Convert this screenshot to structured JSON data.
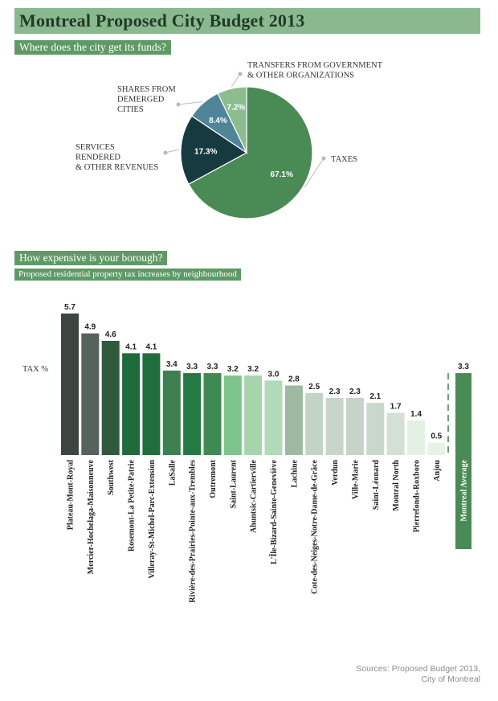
{
  "title": "Montreal Proposed City Budget 2013",
  "pie_heading": "Where does the city get its funds?",
  "bar_heading": "How expensive is your borough?",
  "bar_subheading": "Proposed residential property tax increases by neighbourhood",
  "sources": [
    "Sources: Proposed Budget 2013,",
    "City of Montreal"
  ],
  "chart_data": [
    {
      "type": "pie",
      "title": "Where does the city get its funds?",
      "slices": [
        {
          "label": [
            "TAXES"
          ],
          "value": 67.1,
          "value_label": "67.1%",
          "color": "#4a8a55"
        },
        {
          "label": [
            "SERVICES",
            "RENDERED",
            "& OTHER REVENUES"
          ],
          "value": 17.3,
          "value_label": "17.3%",
          "color": "#173a40"
        },
        {
          "label": [
            "SHARES FROM",
            "DEMERGED",
            "CITIES"
          ],
          "value": 8.4,
          "value_label": "8.4%",
          "color": "#4f8499"
        },
        {
          "label": [
            "TRANSFERS FROM GOVERNMENT",
            "& OTHER ORGANIZATIONS"
          ],
          "value": 7.2,
          "value_label": "7.2%",
          "color": "#8cbc8f"
        }
      ]
    },
    {
      "type": "bar",
      "title": "Proposed residential property tax increases by neighbourhood",
      "ylabel": "TAX %",
      "ylim": [
        0,
        5.7
      ],
      "categories": [
        "Plateau-Mont-Royal",
        "Mercier-Hochelaga-Maisonneuve",
        "Southwest",
        "Rosemont-La Petite-Patrie",
        "Villeray-St-Michel-Parc-Extension",
        "LaSalle",
        "Rivière-des-Prairies-Pointe-aux-Trembles",
        "Outremont",
        "Saint-Laurent",
        "Ahuntsic-Cartierville",
        "L'Île-Bizard-Sainte-Geneviève",
        "Lachine",
        "Cote-des-Neiges-Notre-Dame-de-Grâce",
        "Verdun",
        "Ville-Marie",
        "Saint-Léonard",
        "Montral North",
        "Pierrefonds-Roxboro",
        "Anjou"
      ],
      "values": [
        5.7,
        4.9,
        4.6,
        4.1,
        4.1,
        3.4,
        3.3,
        3.3,
        3.2,
        3.2,
        3.0,
        2.8,
        2.5,
        2.3,
        2.3,
        2.1,
        1.7,
        1.4,
        0.5
      ],
      "value_labels": [
        "5.7",
        "4.9",
        "4.6",
        "4.1",
        "4.1",
        "3.4",
        "3.3",
        "3.3",
        "3.2",
        "3.2",
        "3.0",
        "2.8",
        "2.5",
        "2.3",
        "2.3",
        "2.1",
        "1.7",
        "1.4",
        "0.5"
      ],
      "colors": [
        "#3c4540",
        "#58625c",
        "#2f5a3c",
        "#1e6a3a",
        "#206e3c",
        "#3f8050",
        "#237a42",
        "#3f8a52",
        "#7dc48a",
        "#a6d4ad",
        "#b2d9b8",
        "#9eb9a2",
        "#c3d4c6",
        "#c8d6ca",
        "#c6d3c8",
        "#cad7cc",
        "#d4e0d6",
        "#e3f0e4",
        "#e8f2e8"
      ],
      "reference": {
        "label": "Montreal Average",
        "value": 3.3,
        "value_label": "3.3",
        "color": "#4a8a55"
      }
    }
  ]
}
